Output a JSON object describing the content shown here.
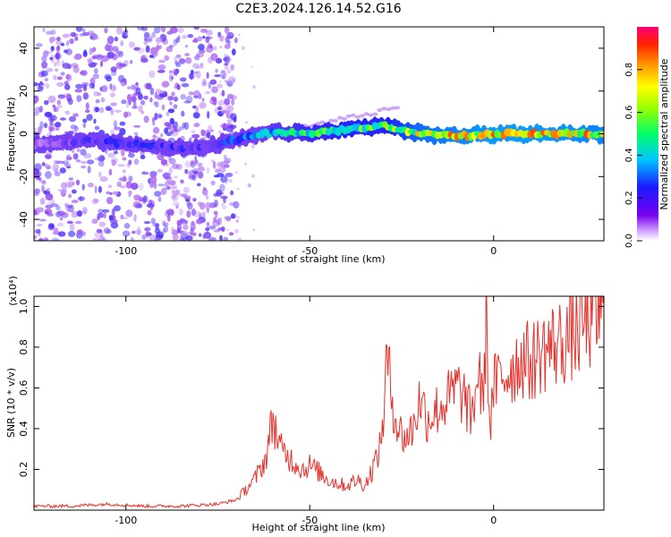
{
  "title": "C2E3.2024.126.14.52.G16",
  "spectrogram": {
    "xlabel": "Height of straight line (km)",
    "ylabel": "Frequency (Hz)",
    "xlim": [
      -125,
      30
    ],
    "ylim": [
      -50,
      50
    ],
    "xticks": [
      -100,
      -50,
      0
    ],
    "yticks": [
      -40,
      -20,
      0,
      20,
      40
    ],
    "colorbar": {
      "label": "Normalized spectral amplitude",
      "ticks": [
        "0.0",
        "0.2",
        "0.4",
        "0.6",
        "0.8"
      ],
      "range": [
        0,
        1
      ]
    }
  },
  "chart_data": [
    {
      "type": "heatmap",
      "title": "C2E3.2024.126.14.52.G16",
      "xlabel": "Height of straight line (km)",
      "ylabel": "Frequency (Hz)",
      "xlim": [
        -125,
        30
      ],
      "ylim": [
        -50,
        50
      ],
      "colorscale": "rainbow (violet=0 → red=1)",
      "ridge": [
        {
          "x": -125,
          "y": -5,
          "amp": 0.1
        },
        {
          "x": -110,
          "y": -3,
          "amp": 0.2
        },
        {
          "x": -90,
          "y": -6,
          "amp": 0.25
        },
        {
          "x": -80,
          "y": -7,
          "amp": 0.2
        },
        {
          "x": -70,
          "y": -3,
          "amp": 0.3
        },
        {
          "x": -60,
          "y": 1,
          "amp": 0.45
        },
        {
          "x": -50,
          "y": 0,
          "amp": 0.55
        },
        {
          "x": -40,
          "y": 2,
          "amp": 0.6
        },
        {
          "x": -30,
          "y": 4,
          "amp": 0.6
        },
        {
          "x": -20,
          "y": 0,
          "amp": 0.8
        },
        {
          "x": -10,
          "y": -1,
          "amp": 0.85
        },
        {
          "x": 0,
          "y": 0,
          "amp": 0.9
        },
        {
          "x": 10,
          "y": 0,
          "amp": 0.9
        },
        {
          "x": 20,
          "y": 0,
          "amp": 0.88
        },
        {
          "x": 30,
          "y": 0,
          "amp": 0.85
        }
      ]
    },
    {
      "type": "line",
      "xlabel": "Height of straight line (km)",
      "ylabel": "SNR (10 * v/v)",
      "multiplier": "(x10⁴)",
      "xlim": [
        -125,
        30
      ],
      "ylim": [
        0,
        1.05
      ],
      "xticks": [
        -100,
        -50,
        0
      ],
      "yticks": [
        "0.2",
        "0.4",
        "0.6",
        "0.8",
        "1.0"
      ],
      "color": "#e8312c",
      "series": [
        {
          "x": [
            -125,
            -115,
            -105,
            -95,
            -85,
            -75,
            -70,
            -65,
            -62,
            -60,
            -58,
            -55,
            -52,
            -50,
            -47,
            -45,
            -42,
            -40,
            -37,
            -35,
            -33,
            -31,
            -30,
            -29,
            -28,
            -26,
            -24,
            -22,
            -20,
            -18,
            -15,
            -12,
            -10,
            -8,
            -6,
            -4,
            -3,
            -2,
            -1,
            0,
            2,
            5,
            8,
            10,
            13,
            15,
            18,
            20,
            23,
            25,
            28,
            30
          ],
          "y": [
            0.02,
            0.02,
            0.03,
            0.02,
            0.02,
            0.03,
            0.05,
            0.15,
            0.25,
            0.45,
            0.3,
            0.25,
            0.2,
            0.22,
            0.18,
            0.15,
            0.13,
            0.12,
            0.15,
            0.12,
            0.2,
            0.3,
            0.45,
            0.75,
            0.6,
            0.4,
            0.35,
            0.4,
            0.55,
            0.45,
            0.5,
            0.55,
            0.6,
            0.55,
            0.45,
            0.7,
            0.5,
            0.95,
            0.4,
            0.6,
            0.65,
            0.7,
            0.75,
            0.72,
            0.78,
            0.8,
            0.82,
            0.85,
            0.88,
            0.92,
            0.95,
            0.97
          ]
        }
      ]
    }
  ]
}
